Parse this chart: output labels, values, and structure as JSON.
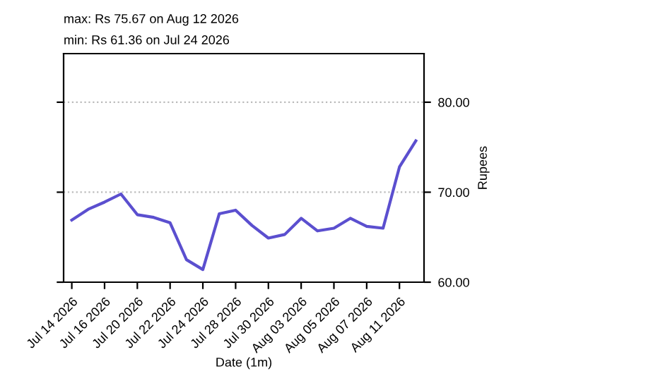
{
  "chart_data": {
    "type": "line",
    "title": "max: Rs 75.67 on Aug 12 2026",
    "subtitle": "min: Rs 61.36 on Jul 24 2026",
    "xlabel": "Date (1m)",
    "ylabel": "Rupees",
    "categories": [
      "Jul 14 2026",
      null,
      "Jul 16 2026",
      null,
      "Jul 20 2026",
      null,
      "Jul 22 2026",
      null,
      "Jul 24 2026",
      null,
      "Jul 28 2026",
      null,
      "Jul 30 2026",
      null,
      "Aug 03 2026",
      null,
      "Aug 05 2026",
      null,
      "Aug 07 2026",
      null,
      "Aug 11 2026",
      null
    ],
    "series": [
      {
        "color": "#5b4fcf",
        "values": [
          66.9,
          68.1,
          68.9,
          69.8,
          67.5,
          67.2,
          66.6,
          62.5,
          61.4,
          67.6,
          68.0,
          66.3,
          64.9,
          65.3,
          67.1,
          65.7,
          66.0,
          67.1,
          66.2,
          66.0,
          72.8,
          75.7
        ]
      }
    ],
    "ylim": [
      60,
      85.4
    ],
    "yticks": [
      {
        "value": 60,
        "label": "60.00"
      },
      {
        "value": 70,
        "label": "70.00"
      },
      {
        "value": 80,
        "label": "80.00"
      }
    ],
    "grid": "y",
    "line_style": "solid",
    "marker": "none"
  }
}
